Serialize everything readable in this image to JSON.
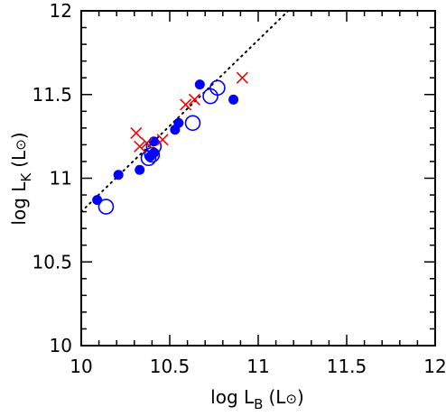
{
  "chart_data": {
    "type": "scatter",
    "xlim": [
      10,
      12
    ],
    "ylim": [
      10,
      12
    ],
    "x_ticks": [
      "10",
      "10.5",
      "11",
      "11.5",
      "12"
    ],
    "y_ticks": [
      "10",
      "10.5",
      "11",
      "11.5",
      "12"
    ],
    "xlabel": {
      "prefix": "log L",
      "sub": "B",
      "suffix": "(L",
      "close": ")"
    },
    "ylabel": {
      "prefix": "log L",
      "sub": "K",
      "suffix": "(L",
      "close": ")"
    },
    "grid": false,
    "legend": "none",
    "colors": {
      "filled": "#0000ff",
      "open": "#0000ff",
      "cross": "#ff0000",
      "line": "#000000"
    },
    "fit_line": {
      "x": [
        10,
        11.17
      ],
      "y": [
        10.8,
        12
      ],
      "style": "dotted"
    },
    "series": [
      {
        "marker": "filled-circle",
        "x": [
          10.09,
          10.21,
          10.33,
          10.39,
          10.41,
          10.41,
          10.53,
          10.55,
          10.67,
          10.86
        ],
        "y": [
          10.87,
          11.02,
          11.05,
          11.13,
          11.15,
          11.22,
          11.29,
          11.33,
          11.56,
          11.47
        ]
      },
      {
        "marker": "open-circle",
        "x": [
          10.14,
          10.38,
          10.4,
          10.41,
          10.63,
          10.73,
          10.77
        ],
        "y": [
          10.83,
          11.12,
          11.14,
          11.19,
          11.33,
          11.49,
          11.54
        ]
      },
      {
        "marker": "cross",
        "x": [
          10.31,
          10.33,
          10.37,
          10.46,
          10.59,
          10.64,
          10.91
        ],
        "y": [
          11.27,
          11.19,
          11.21,
          11.23,
          11.44,
          11.47,
          11.6
        ]
      }
    ]
  }
}
